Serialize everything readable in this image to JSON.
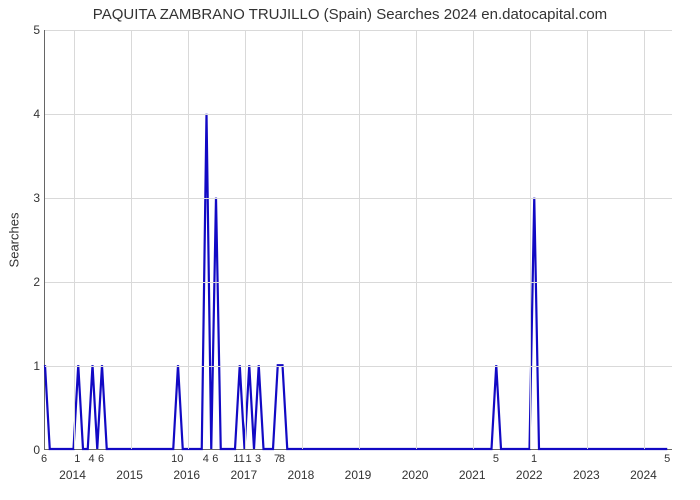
{
  "chart": {
    "type": "line",
    "title": "PAQUITA ZAMBRANO TRUJILLO (Spain) Searches 2024 en.datocapital.com",
    "title_fontsize": 15,
    "ylabel": "Searches",
    "label_fontsize": 13,
    "background_color": "#ffffff",
    "grid_color": "#d9d9d9",
    "axis_color": "#666666",
    "ylim": [
      0,
      5
    ],
    "ytick_step": 1,
    "yticks": [
      0,
      1,
      2,
      3,
      4,
      5
    ],
    "x_total_units": 132,
    "year_ticks": [
      {
        "label": "2014",
        "unit": 6
      },
      {
        "label": "2015",
        "unit": 18
      },
      {
        "label": "2016",
        "unit": 30
      },
      {
        "label": "2017",
        "unit": 42
      },
      {
        "label": "2018",
        "unit": 54
      },
      {
        "label": "2019",
        "unit": 66
      },
      {
        "label": "2020",
        "unit": 78
      },
      {
        "label": "2021",
        "unit": 90
      },
      {
        "label": "2022",
        "unit": 102
      },
      {
        "label": "2023",
        "unit": 114
      },
      {
        "label": "2024",
        "unit": 126
      }
    ],
    "minor_ticks": [
      {
        "label": "6",
        "unit": 0
      },
      {
        "label": "1",
        "unit": 7
      },
      {
        "label": "4",
        "unit": 10
      },
      {
        "label": "6",
        "unit": 12
      },
      {
        "label": "10",
        "unit": 28
      },
      {
        "label": "4",
        "unit": 34
      },
      {
        "label": "6",
        "unit": 36
      },
      {
        "label": "11",
        "unit": 41
      },
      {
        "label": "1",
        "unit": 43
      },
      {
        "label": "3",
        "unit": 45
      },
      {
        "label": "7",
        "unit": 49
      },
      {
        "label": "8",
        "unit": 50
      },
      {
        "label": "5",
        "unit": 95
      },
      {
        "label": "1",
        "unit": 103
      },
      {
        "label": "5",
        "unit": 131
      }
    ],
    "series": {
      "color": "#1209c4",
      "line_width": 2.2,
      "points": [
        {
          "x": 0,
          "y": 1
        },
        {
          "x": 1,
          "y": 0
        },
        {
          "x": 6,
          "y": 0
        },
        {
          "x": 7,
          "y": 1
        },
        {
          "x": 8,
          "y": 0
        },
        {
          "x": 9,
          "y": 0
        },
        {
          "x": 10,
          "y": 1
        },
        {
          "x": 11,
          "y": 0
        },
        {
          "x": 12,
          "y": 1
        },
        {
          "x": 13,
          "y": 0
        },
        {
          "x": 27,
          "y": 0
        },
        {
          "x": 28,
          "y": 1
        },
        {
          "x": 29,
          "y": 0
        },
        {
          "x": 33,
          "y": 0
        },
        {
          "x": 34,
          "y": 4
        },
        {
          "x": 35,
          "y": 0
        },
        {
          "x": 36,
          "y": 3
        },
        {
          "x": 37,
          "y": 0
        },
        {
          "x": 40,
          "y": 0
        },
        {
          "x": 41,
          "y": 1
        },
        {
          "x": 42,
          "y": 0
        },
        {
          "x": 43,
          "y": 1
        },
        {
          "x": 44,
          "y": 0
        },
        {
          "x": 45,
          "y": 1
        },
        {
          "x": 46,
          "y": 0
        },
        {
          "x": 48,
          "y": 0
        },
        {
          "x": 49,
          "y": 1
        },
        {
          "x": 50,
          "y": 1
        },
        {
          "x": 51,
          "y": 0
        },
        {
          "x": 94,
          "y": 0
        },
        {
          "x": 95,
          "y": 1
        },
        {
          "x": 96,
          "y": 0
        },
        {
          "x": 102,
          "y": 0
        },
        {
          "x": 103,
          "y": 3
        },
        {
          "x": 104,
          "y": 0
        },
        {
          "x": 131,
          "y": 0
        }
      ]
    }
  }
}
